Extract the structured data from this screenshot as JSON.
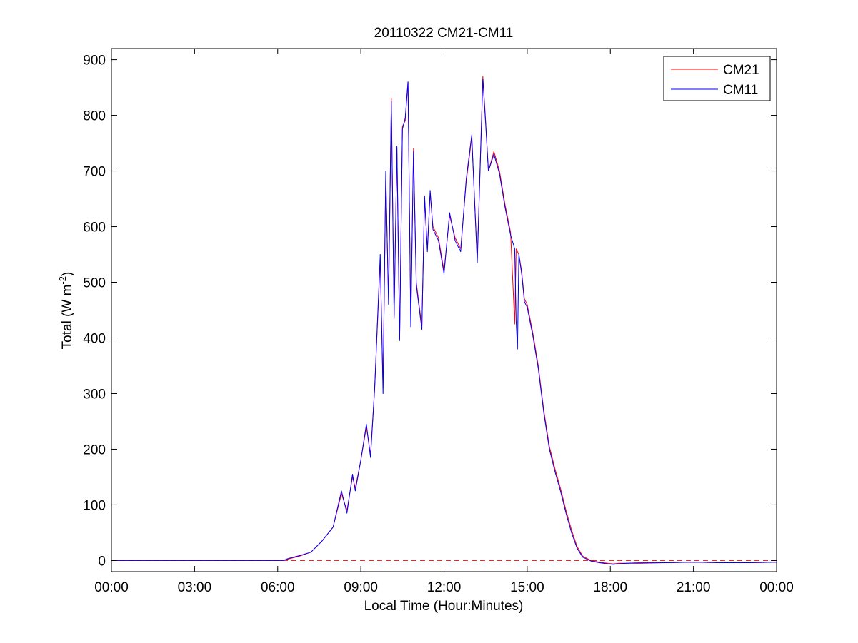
{
  "chart_data": {
    "type": "line",
    "title": "20110322 CM21-CM11",
    "xlabel": "Local Time (Hour:Minutes)",
    "ylabel": {
      "prefix": "Total (W m",
      "superscript": "-2",
      "suffix": ")"
    },
    "xlim": [
      0,
      24
    ],
    "ylim": [
      -20,
      920
    ],
    "x_units": "hours",
    "xticks": [
      0,
      3,
      6,
      9,
      12,
      15,
      18,
      21,
      24
    ],
    "xtick_labels": [
      "00:00",
      "03:00",
      "06:00",
      "09:00",
      "12:00",
      "15:00",
      "18:00",
      "21:00",
      "00:00"
    ],
    "yticks": [
      0,
      100,
      200,
      300,
      400,
      500,
      600,
      700,
      800,
      900
    ],
    "ytick_labels": [
      "0",
      "100",
      "200",
      "300",
      "400",
      "500",
      "600",
      "700",
      "800",
      "900"
    ],
    "grid": false,
    "legend": {
      "position": "top-right"
    },
    "zero_line": {
      "y": 0,
      "style": "dashed",
      "color": "#ff0000"
    },
    "series": [
      {
        "name": "CM21",
        "color": "#ff0000",
        "x": [
          0,
          6.2,
          6.4,
          6.8,
          7.2,
          7.6,
          8.0,
          8.3,
          8.5,
          8.7,
          8.8,
          9.0,
          9.2,
          9.35,
          9.5,
          9.7,
          9.8,
          9.9,
          10.0,
          10.1,
          10.2,
          10.3,
          10.4,
          10.5,
          10.6,
          10.7,
          10.8,
          10.9,
          11.0,
          11.1,
          11.2,
          11.3,
          11.4,
          11.5,
          11.6,
          11.8,
          12.0,
          12.2,
          12.4,
          12.6,
          12.8,
          13.0,
          13.2,
          13.4,
          13.5,
          13.6,
          13.8,
          14.0,
          14.2,
          14.4,
          14.55,
          14.6,
          14.7,
          14.8,
          14.9,
          15.0,
          15.2,
          15.4,
          15.6,
          15.8,
          16.0,
          16.2,
          16.4,
          16.6,
          16.8,
          17.0,
          17.3,
          17.6,
          17.9,
          18.1,
          18.3,
          18.6,
          19.0,
          20.0,
          21.0,
          22.0,
          23.0,
          24.0
        ],
        "values": [
          0,
          0,
          3,
          8,
          15,
          35,
          60,
          120,
          90,
          150,
          130,
          180,
          240,
          190,
          310,
          540,
          310,
          690,
          470,
          830,
          440,
          740,
          400,
          780,
          790,
          860,
          430,
          740,
          500,
          460,
          420,
          650,
          560,
          660,
          600,
          580,
          520,
          620,
          580,
          560,
          680,
          760,
          540,
          870,
          790,
          700,
          735,
          700,
          640,
          590,
          425,
          560,
          550,
          520,
          470,
          460,
          410,
          350,
          270,
          205,
          165,
          130,
          90,
          55,
          25,
          8,
          0,
          -3,
          -5,
          -6,
          -5,
          -5,
          -4,
          -4,
          -3,
          -4,
          -4,
          -3
        ]
      },
      {
        "name": "CM11",
        "color": "#0000ff",
        "x": [
          0,
          6.2,
          6.4,
          6.8,
          7.2,
          7.6,
          8.0,
          8.3,
          8.5,
          8.7,
          8.8,
          9.0,
          9.2,
          9.35,
          9.5,
          9.7,
          9.8,
          9.9,
          10.0,
          10.1,
          10.2,
          10.3,
          10.4,
          10.5,
          10.6,
          10.7,
          10.8,
          10.9,
          11.0,
          11.1,
          11.2,
          11.3,
          11.4,
          11.5,
          11.6,
          11.8,
          12.0,
          12.2,
          12.4,
          12.6,
          12.8,
          13.0,
          13.2,
          13.4,
          13.5,
          13.6,
          13.8,
          14.0,
          14.2,
          14.4,
          14.55,
          14.6,
          14.65,
          14.7,
          14.8,
          14.9,
          15.0,
          15.2,
          15.4,
          15.6,
          15.8,
          16.0,
          16.2,
          16.4,
          16.6,
          16.8,
          17.0,
          17.3,
          17.6,
          17.9,
          18.1,
          18.3,
          18.6,
          19.0,
          20.0,
          21.0,
          22.0,
          23.0,
          24.0
        ],
        "values": [
          0,
          0,
          4,
          9,
          15,
          35,
          60,
          125,
          85,
          155,
          125,
          180,
          245,
          185,
          310,
          550,
          300,
          700,
          460,
          825,
          435,
          745,
          395,
          775,
          795,
          860,
          420,
          735,
          495,
          455,
          415,
          655,
          555,
          665,
          595,
          575,
          515,
          625,
          575,
          555,
          685,
          765,
          535,
          865,
          785,
          700,
          730,
          695,
          635,
          585,
          560,
          430,
          380,
          550,
          515,
          465,
          455,
          405,
          345,
          265,
          200,
          160,
          125,
          85,
          50,
          22,
          6,
          -1,
          -4,
          -6,
          -7,
          -6,
          -5,
          -5,
          -4,
          -3,
          -4,
          -4,
          -3
        ]
      }
    ]
  }
}
